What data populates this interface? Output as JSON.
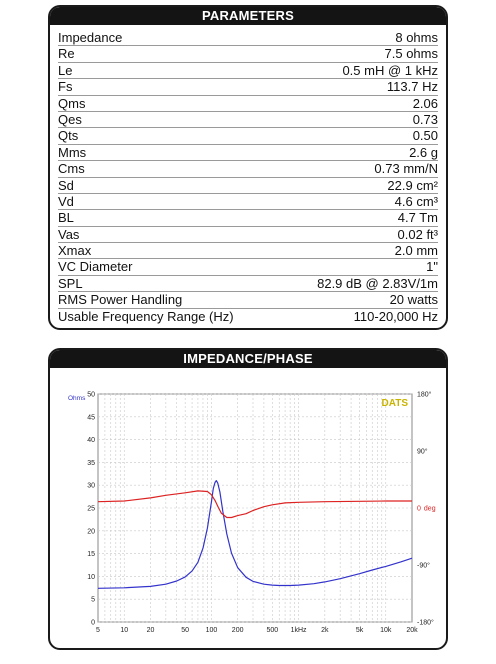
{
  "params": {
    "title": "PARAMETERS",
    "rows": [
      {
        "label": "Impedance",
        "value": "8 ohms"
      },
      {
        "label": "Re",
        "value": "7.5 ohms"
      },
      {
        "label": "Le",
        "value": "0.5 mH @ 1 kHz"
      },
      {
        "label": "Fs",
        "value": "113.7 Hz"
      },
      {
        "label": "Qms",
        "value": "2.06"
      },
      {
        "label": "Qes",
        "value": "0.73"
      },
      {
        "label": "Qts",
        "value": "0.50"
      },
      {
        "label": "Mms",
        "value": "2.6 g"
      },
      {
        "label": "Cms",
        "value": "0.73 mm/N"
      },
      {
        "label": "Sd",
        "value": "22.9 cm²"
      },
      {
        "label": "Vd",
        "value": "4.6 cm³"
      },
      {
        "label": "BL",
        "value": "4.7 Tm"
      },
      {
        "label": "Vas",
        "value": "0.02 ft³"
      },
      {
        "label": "Xmax",
        "value": "2.0 mm"
      },
      {
        "label": "VC Diameter",
        "value": "1\""
      },
      {
        "label": "SPL",
        "value": "82.9 dB @ 2.83V/1m"
      },
      {
        "label": "RMS Power Handling",
        "value": "20 watts"
      },
      {
        "label": "Usable Frequency Range (Hz)",
        "value": "110-20,000 Hz"
      }
    ]
  },
  "chart": {
    "title": "IMPEDANCE/PHASE",
    "brand": "DATS",
    "left_unit": "Ohms",
    "right_unit": "deg",
    "colors": {
      "impedance": "#3333cc",
      "phase": "#dd2222",
      "brand": "#c8b400",
      "grid": "#c8c8c8"
    }
  },
  "chart_data": {
    "type": "line",
    "xscale": "log",
    "xlim": [
      5,
      20000
    ],
    "ylim": [
      0,
      50
    ],
    "y2lim": [
      -180,
      180
    ],
    "x_ticks": [
      5,
      10,
      20,
      50,
      100,
      200,
      500,
      1000,
      2000,
      5000,
      10000,
      20000
    ],
    "x_tick_labels": [
      "5",
      "10",
      "20",
      "50",
      "100",
      "200",
      "500",
      "1kHz",
      "2k",
      "5k",
      "10k",
      "20k"
    ],
    "y_ticks": [
      0,
      5,
      10,
      15,
      20,
      25,
      30,
      35,
      40,
      45,
      50
    ],
    "y2_ticks": [
      180,
      90,
      0,
      -90,
      -180
    ],
    "y2_tick_labels": [
      "180°",
      "90°",
      "0",
      "-90°",
      "-180°"
    ],
    "series": [
      {
        "axis": "left",
        "x": [
          5,
          10,
          20,
          30,
          40,
          50,
          60,
          70,
          80,
          90,
          100,
          105,
          110,
          113.7,
          118,
          125,
          135,
          150,
          170,
          200,
          250,
          300,
          400,
          500,
          600,
          700,
          800,
          1000,
          1500,
          2000,
          3000,
          5000,
          7000,
          10000,
          15000,
          20000
        ],
        "values": [
          7.4,
          7.5,
          7.8,
          8.3,
          9.0,
          9.9,
          11.2,
          13.1,
          16.2,
          20.6,
          26.3,
          29.3,
          30.6,
          31.0,
          30.5,
          28.5,
          24.3,
          19.3,
          15.1,
          11.9,
          9.8,
          8.9,
          8.3,
          8.1,
          8.0,
          8.0,
          8.0,
          8.1,
          8.4,
          8.8,
          9.5,
          10.6,
          11.4,
          12.2,
          13.2,
          14.0
        ]
      },
      {
        "axis": "right",
        "x": [
          5,
          10,
          20,
          30,
          50,
          70,
          90,
          100,
          110,
          120,
          130,
          150,
          170,
          200,
          250,
          300,
          400,
          500,
          700,
          1000,
          2000,
          5000,
          10000,
          20000
        ],
        "values": [
          10,
          11,
          16,
          20,
          24,
          27,
          26,
          21,
          12,
          1,
          -8,
          -15,
          -15,
          -12,
          -9,
          -4,
          2,
          5,
          8,
          9,
          10,
          10.5,
          11,
          11
        ]
      }
    ]
  }
}
